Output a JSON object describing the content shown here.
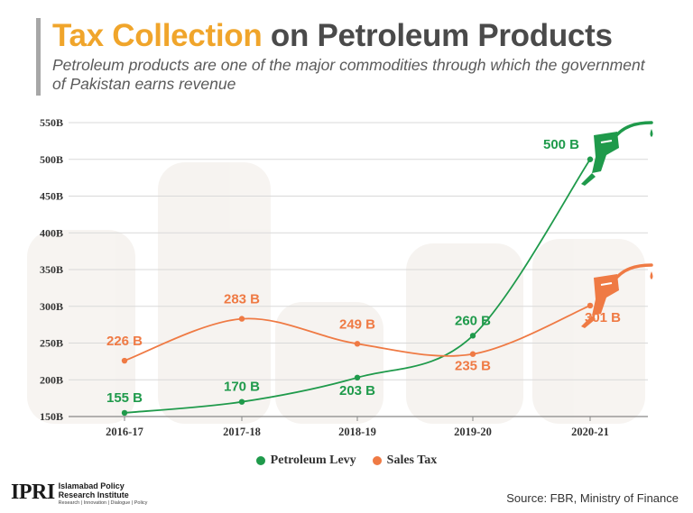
{
  "header": {
    "title_highlight": "Tax Collection",
    "title_rest": "on Petroleum Products",
    "subtitle": "Petroleum products are one of the major commodities through which the government of Pakistan earns revenue"
  },
  "colors": {
    "accent": "#f0a52b",
    "levy": "#1f9a4b",
    "sales": "#ef7a44"
  },
  "icons": {
    "levy_icon": "fuel-nozzle-icon",
    "sales_icon": "fuel-nozzle-icon"
  },
  "chart_data": {
    "type": "line",
    "categories": [
      "2016-17",
      "2017-18",
      "2018-19",
      "2019-20",
      "2020-21"
    ],
    "ylim": [
      150,
      550
    ],
    "yticks": [
      150,
      200,
      250,
      300,
      350,
      400,
      450,
      500,
      550
    ],
    "ytick_labels": [
      "150B",
      "200B",
      "250B",
      "300B",
      "350B",
      "400B",
      "450B",
      "500B",
      "550B"
    ],
    "grid": true,
    "series": [
      {
        "name": "Petroleum Levy",
        "values": [
          155,
          170,
          203,
          260,
          500
        ],
        "labels": [
          "155 B",
          "170 B",
          "203 B",
          "260 B",
          "500 B"
        ],
        "color": "#1f9a4b"
      },
      {
        "name": "Sales Tax",
        "values": [
          226,
          283,
          249,
          235,
          301
        ],
        "labels": [
          "226 B",
          "283 B",
          "249 B",
          "235 B",
          "301 B"
        ],
        "color": "#ef7a44"
      }
    ],
    "legend_position": "bottom"
  },
  "footer": {
    "logo_mark": "IPRI",
    "logo_name_1": "Islamabad Policy",
    "logo_name_2": "Research Institute",
    "logo_tagline": "Research | Innovation | Dialogue | Policy",
    "source": "Source: FBR, Ministry of Finance"
  }
}
